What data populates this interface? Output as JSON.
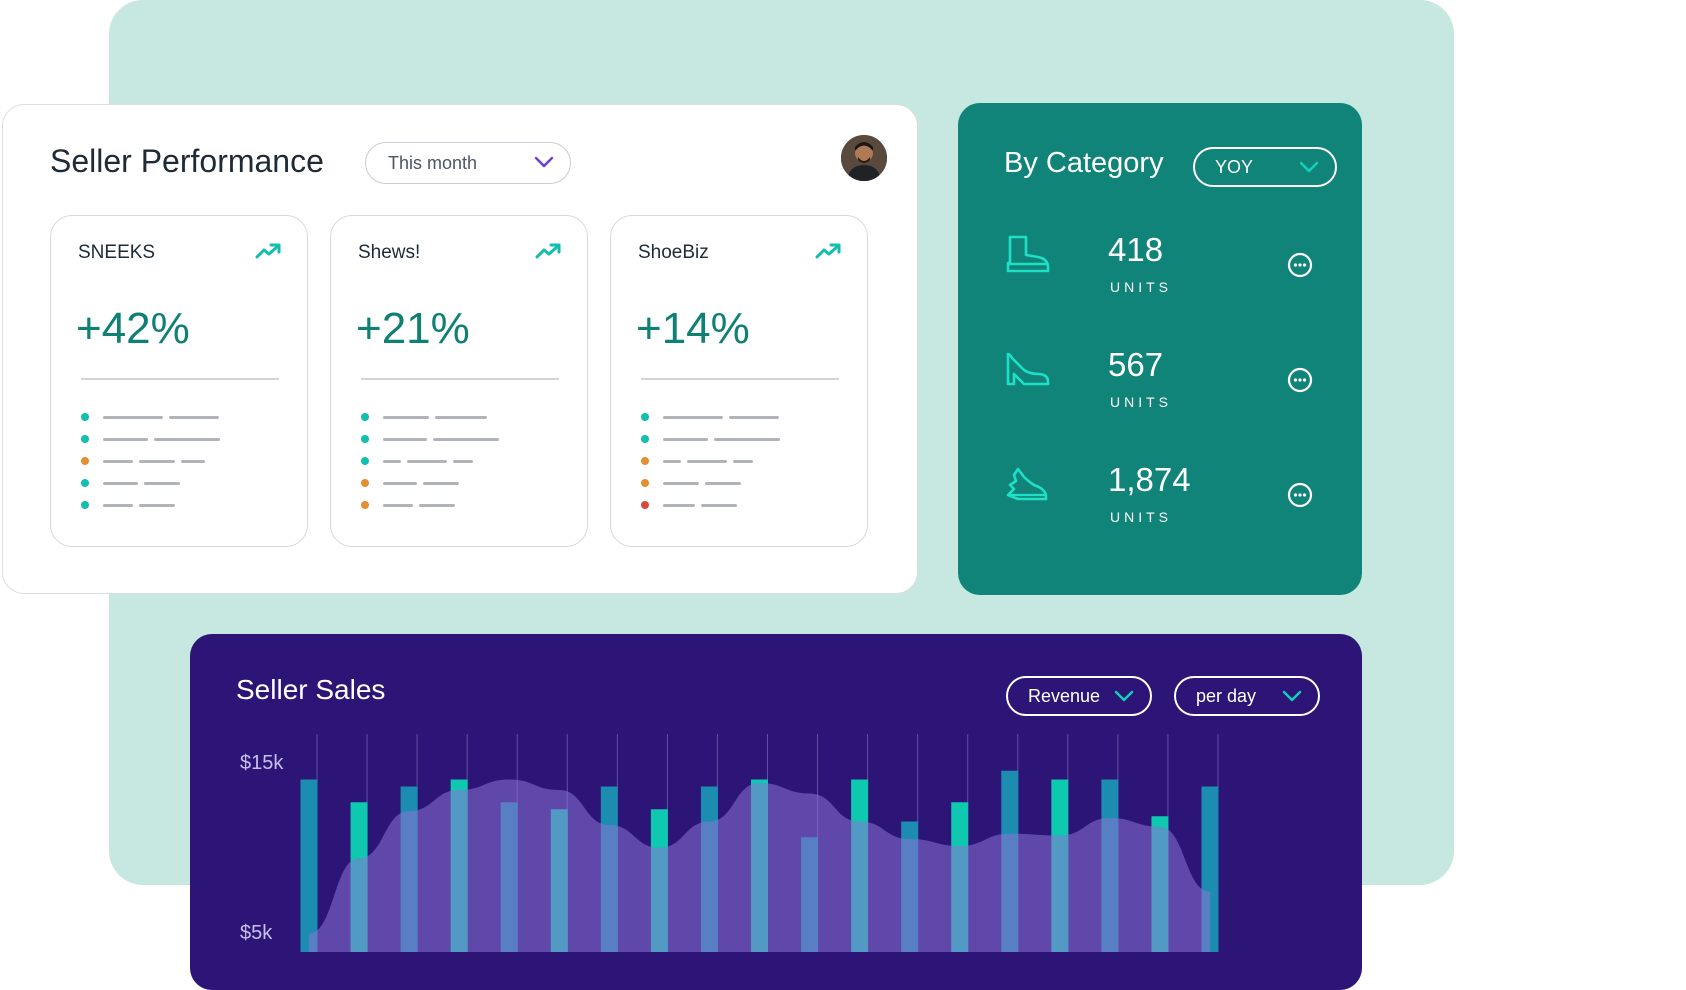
{
  "colors": {
    "accent_teal": "#0ec8b0",
    "brand_green": "#108479",
    "dark_purple": "#2c1577",
    "background_mint": "#c7e8e0",
    "status_teal": "#11bfae",
    "status_orange": "#e0902f",
    "status_red": "#d9483b",
    "dropdown_chevron": "#6d3ad6"
  },
  "performance": {
    "title": "Seller Performance",
    "period_select": "This month",
    "avatar_icon": "user-avatar",
    "sellers": [
      {
        "name": "SNEEKS",
        "change": "+42%",
        "trend_icon": "trend-up-icon",
        "rows": [
          {
            "status": "teal",
            "bars": [
              60,
              50
            ]
          },
          {
            "status": "teal",
            "bars": [
              45,
              66
            ]
          },
          {
            "status": "orange",
            "bars": [
              30,
              36,
              24
            ]
          },
          {
            "status": "teal",
            "bars": [
              35,
              36
            ]
          },
          {
            "status": "teal",
            "bars": [
              30,
              36
            ]
          }
        ]
      },
      {
        "name": "Shews!",
        "change": "+21%",
        "trend_icon": "trend-up-icon",
        "rows": [
          {
            "status": "teal",
            "bars": [
              46,
              52
            ]
          },
          {
            "status": "teal",
            "bars": [
              44,
              66
            ]
          },
          {
            "status": "teal",
            "bars": [
              18,
              40,
              20
            ]
          },
          {
            "status": "orange",
            "bars": [
              34,
              36
            ]
          },
          {
            "status": "orange",
            "bars": [
              30,
              36
            ]
          }
        ]
      },
      {
        "name": "ShoeBiz",
        "change": "+14%",
        "trend_icon": "trend-up-icon",
        "rows": [
          {
            "status": "teal",
            "bars": [
              60,
              50
            ]
          },
          {
            "status": "teal",
            "bars": [
              45,
              66
            ]
          },
          {
            "status": "orange",
            "bars": [
              18,
              40,
              20
            ]
          },
          {
            "status": "orange",
            "bars": [
              36,
              36
            ]
          },
          {
            "status": "red",
            "bars": [
              32,
              36
            ]
          }
        ]
      }
    ]
  },
  "category": {
    "title": "By Category",
    "period_select": "YOY",
    "items": [
      {
        "icon": "boot-icon",
        "value": "418",
        "unit": "UNITS",
        "more_icon": "more-options-icon"
      },
      {
        "icon": "heel-shoe-icon",
        "value": "567",
        "unit": "UNITS",
        "more_icon": "more-options-icon"
      },
      {
        "icon": "sneaker-icon",
        "value": "1,874",
        "unit": "UNITS",
        "more_icon": "more-options-icon"
      }
    ]
  },
  "sales": {
    "title": "Seller Sales",
    "metric_select": "Revenue",
    "interval_select": "per day"
  },
  "chart_data": {
    "type": "bar",
    "title": "Seller Sales",
    "xlabel": "",
    "ylabel": "",
    "ylim": [
      5,
      15
    ],
    "y_ticks": [
      "$15k",
      "$5k"
    ],
    "grid": "vertical",
    "series": [
      {
        "values": [
          14.0,
          12.7,
          13.6,
          14.0,
          12.7,
          12.3,
          13.6,
          12.3,
          13.6,
          14.0,
          10.7,
          14.0,
          11.6,
          12.7,
          14.5,
          14.0,
          14.0,
          11.9,
          13.6
        ]
      }
    ],
    "area": [
      5.2,
      9.5,
      12.2,
      13.4,
      14.0,
      13.4,
      11.4,
      10.1,
      11.6,
      13.8,
      13.2,
      11.6,
      10.6,
      10.2,
      10.9,
      10.8,
      11.8,
      11.3,
      7.6
    ],
    "bar_colors": [
      "#1c8db0",
      "#0ec8b0",
      "#1c8db0",
      "#0ec8b0",
      "#1c8db0",
      "#0ec8b0",
      "#1c8db0",
      "#0ec8b0",
      "#1c8db0",
      "#0ec8b0",
      "#1c8db0",
      "#0ec8b0",
      "#1c8db0",
      "#0ec8b0",
      "#1c8db0",
      "#0ec8b0",
      "#1c8db0",
      "#0ec8b0",
      "#1c8db0"
    ]
  }
}
